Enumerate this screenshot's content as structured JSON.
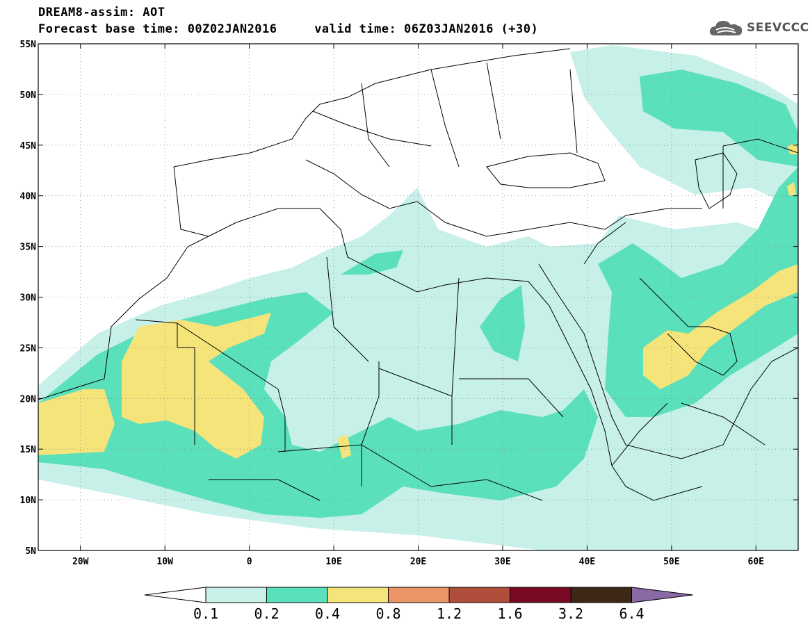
{
  "header": {
    "title_line1": "DREAM8-assim: AOT",
    "title_line2": "Forecast base time: 00Z02JAN2016     valid time: 06Z03JAN2016 (+30)"
  },
  "logo": {
    "text": "SEEVCCC",
    "icon": "cloud-icon"
  },
  "map": {
    "lon_range": [
      -25,
      65
    ],
    "lat_range": [
      5,
      55
    ],
    "lat_ticks": [
      {
        "value": 55,
        "label": "55N"
      },
      {
        "value": 50,
        "label": "50N"
      },
      {
        "value": 45,
        "label": "45N"
      },
      {
        "value": 40,
        "label": "40N"
      },
      {
        "value": 35,
        "label": "35N"
      },
      {
        "value": 30,
        "label": "30N"
      },
      {
        "value": 25,
        "label": "25N"
      },
      {
        "value": 20,
        "label": "20N"
      },
      {
        "value": 15,
        "label": "15N"
      },
      {
        "value": 10,
        "label": "10N"
      },
      {
        "value": 5,
        "label": "5N"
      }
    ],
    "lon_ticks": [
      {
        "value": -20,
        "label": "20W"
      },
      {
        "value": -10,
        "label": "10W"
      },
      {
        "value": 0,
        "label": "0"
      },
      {
        "value": 10,
        "label": "10E"
      },
      {
        "value": 20,
        "label": "20E"
      },
      {
        "value": 30,
        "label": "30E"
      },
      {
        "value": 40,
        "label": "40E"
      },
      {
        "value": 50,
        "label": "50E"
      },
      {
        "value": 60,
        "label": "60E"
      }
    ],
    "grid": true,
    "grid_style": "dotted"
  },
  "colorbar": {
    "levels": [
      "0.1",
      "0.2",
      "0.4",
      "0.8",
      "1.2",
      "1.6",
      "3.2",
      "6.4"
    ],
    "colors": [
      "#ffffff",
      "#c6f0e8",
      "#5be0bc",
      "#f5e47a",
      "#eb9567",
      "#b04e3c",
      "#7a0a24",
      "#3c2814",
      "#8a6aa4"
    ],
    "extend": "both"
  }
}
